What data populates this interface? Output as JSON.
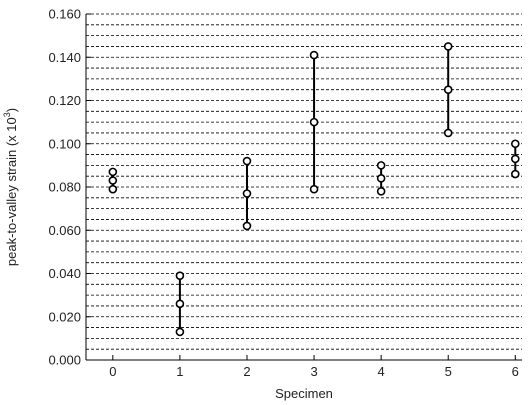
{
  "chart_data": {
    "type": "scatter",
    "style": "range-markers",
    "xlabel": "Specimen",
    "ylabel": {
      "prefix": "peak-to-valley strain (x 10",
      "sup": "3",
      "suffix": ")"
    },
    "x_ticks": [
      "0",
      "1",
      "2",
      "3",
      "4",
      "5",
      "6"
    ],
    "y_ticks": [
      "0.000",
      "0.020",
      "0.040",
      "0.060",
      "0.080",
      "0.100",
      "0.120",
      "0.140",
      "0.160"
    ],
    "xlim": [
      -0.4,
      6.1
    ],
    "ylim": [
      0,
      0.16
    ],
    "grid": {
      "horizontal": "dashed",
      "step": 0.005
    },
    "colors": {
      "marker": "#000000",
      "grid": "#000000",
      "axis": "#000000"
    },
    "points": [
      {
        "x": 0,
        "values": [
          0.079,
          0.083,
          0.087
        ]
      },
      {
        "x": 1,
        "values": [
          0.013,
          0.026,
          0.039
        ]
      },
      {
        "x": 2,
        "values": [
          0.062,
          0.077,
          0.092
        ]
      },
      {
        "x": 3,
        "values": [
          0.079,
          0.11,
          0.141
        ]
      },
      {
        "x": 4,
        "values": [
          0.078,
          0.084,
          0.09
        ]
      },
      {
        "x": 5,
        "values": [
          0.105,
          0.125,
          0.145
        ]
      },
      {
        "x": 6,
        "values": [
          0.086,
          0.093,
          0.1
        ]
      }
    ]
  }
}
